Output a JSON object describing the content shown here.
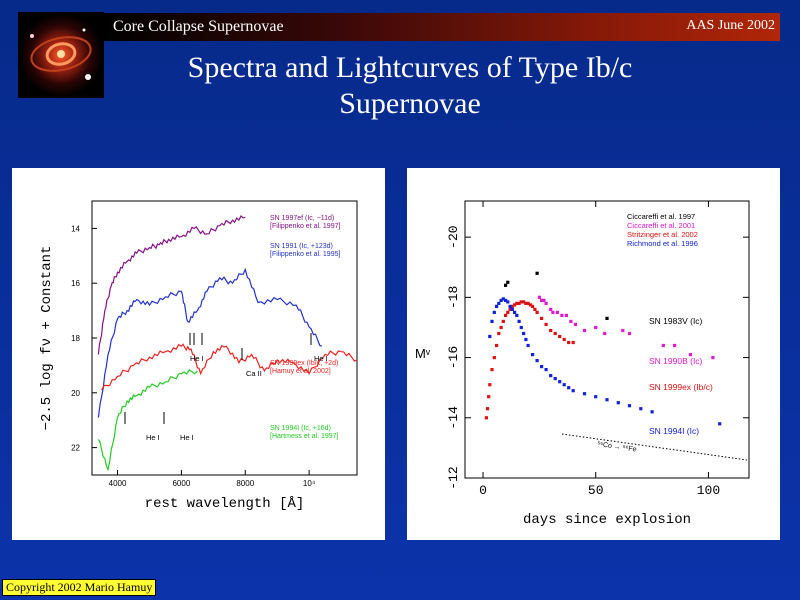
{
  "header": {
    "left_label": "Core Collapse Supernovae",
    "right_label": "AAS June 2002"
  },
  "title": {
    "line1": "Spectra and Lightcurves of Type Ib/c",
    "line2": "Supernovae"
  },
  "logo": {
    "icon": "supernova-ring-image"
  },
  "copyright": "Copyright 2002 Mario Hamuy",
  "chart_data": [
    {
      "type": "line",
      "xlabel": "rest wavelength [Å]",
      "ylabel": "−2.5 log fν + Constant",
      "xlim": [
        3200,
        11500
      ],
      "ylim": [
        23,
        13
      ],
      "x_tick_labels": [
        {
          "v": 4000,
          "label": "4000"
        },
        {
          "v": 6000,
          "label": "6000"
        },
        {
          "v": 8000,
          "label": "8000"
        },
        {
          "v": 10000,
          "label": "10⁴"
        }
      ],
      "y_tick_labels": [
        {
          "v": 14,
          "label": "14"
        },
        {
          "v": 16,
          "label": "16"
        },
        {
          "v": 18,
          "label": "18"
        },
        {
          "v": 20,
          "label": "20"
        },
        {
          "v": 22,
          "label": "22"
        }
      ],
      "series": [
        {
          "color": "#881188",
          "label1": "SN 1997ef (Ic, −11d)",
          "label2": "[Filippenko et al. 1997]",
          "x": [
            3400,
            3600,
            3800,
            4000,
            4300,
            4600,
            5000,
            5300,
            5600,
            6000,
            6400,
            6800,
            7200,
            7600,
            8000
          ],
          "y": [
            18.6,
            17.0,
            16.1,
            15.6,
            15.2,
            14.9,
            14.7,
            14.6,
            14.4,
            14.3,
            14.0,
            14.2,
            13.9,
            13.7,
            13.6
          ]
        },
        {
          "color": "#2233cc",
          "label1": "SN 1991 (Ic, +123d)",
          "label2": "[Filippenko et al. 1995]",
          "x": [
            3400,
            3700,
            4000,
            4300,
            4600,
            5000,
            5500,
            6000,
            6200,
            6500,
            6800,
            7200,
            7600,
            8000,
            8400,
            9000,
            9600,
            10000,
            10400
          ],
          "y": [
            20.9,
            18.6,
            17.3,
            17.0,
            16.6,
            16.8,
            16.5,
            16.3,
            17.4,
            17.0,
            16.3,
            15.8,
            16.0,
            15.5,
            16.7,
            16.6,
            16.8,
            17.6,
            18.3
          ]
        },
        {
          "color": "#ee2222",
          "label1": "SN 1999ex (Ib/c, +2d)",
          "label2": "[Hamuy et al. 2002]",
          "x": [
            3500,
            4000,
            4500,
            5000,
            5500,
            6000,
            6300,
            6600,
            7000,
            7400,
            7800,
            8200,
            8600,
            9000,
            9500,
            10000,
            10500,
            11000,
            11500
          ],
          "y": [
            19.9,
            19.4,
            19.0,
            18.7,
            18.5,
            18.3,
            18.4,
            19.3,
            18.5,
            18.3,
            18.9,
            18.6,
            19.2,
            18.8,
            18.9,
            19.3,
            18.6,
            18.5,
            18.8
          ]
        },
        {
          "color": "#22cc22",
          "label1": "SN 1994I (Ic, +16d)",
          "label2": "[Hartmess et al. 1997]",
          "x": [
            3400,
            3700,
            4000,
            4300,
            4600,
            5000,
            5500,
            6000,
            6500
          ],
          "y": [
            21.7,
            22.8,
            20.9,
            20.3,
            20.1,
            19.8,
            19.6,
            19.3,
            19.2
          ]
        }
      ],
      "annotations": [
        "He I",
        "He I",
        "Ca II",
        "He I",
        "He I"
      ]
    },
    {
      "type": "scatter",
      "xlabel": "days since explosion",
      "ylabel": "Mᵛ",
      "xlim": [
        -8,
        118
      ],
      "ylim": [
        -12,
        -21.2
      ],
      "x_ticks": [
        0,
        50,
        100
      ],
      "y_ticks": [
        -20,
        -18,
        -16,
        -14,
        -12
      ],
      "legend": [
        "Ciccareffi et al. 1997",
        "Ciccareffi et al. 2001",
        "Stritzinger et al. 2002",
        "Richmond et al. 1996"
      ],
      "legend_colors": [
        "#000000",
        "#e01ad0",
        "#dd1111",
        "#1122dd"
      ],
      "series": [
        {
          "name": "SN 1983V (Ic)",
          "color": "#000000",
          "x": [
            10,
            11,
            24,
            55
          ],
          "y": [
            -18.4,
            -18.5,
            -18.8,
            -17.3
          ]
        },
        {
          "name": "SN 1990B (Ic)",
          "color": "#e01ad0",
          "x": [
            25,
            26,
            27,
            28,
            30,
            31,
            33,
            35,
            37,
            39,
            41,
            45,
            50,
            54,
            62,
            65,
            80,
            85,
            92,
            102
          ],
          "y": [
            -18.0,
            -17.9,
            -17.9,
            -17.8,
            -17.6,
            -17.5,
            -17.5,
            -17.4,
            -17.4,
            -17.2,
            -17.1,
            -16.9,
            -17.0,
            -16.8,
            -16.9,
            -16.8,
            -16.4,
            -16.4,
            -16.1,
            -16.0
          ]
        },
        {
          "name": "SN 1999ex (Ib/c)",
          "color": "#dd1111",
          "x": [
            1.5,
            2,
            2.5,
            3,
            4,
            5,
            6,
            7,
            8,
            9,
            10,
            11,
            12,
            13,
            14,
            15,
            16,
            17,
            18,
            19,
            20,
            21,
            22,
            23,
            24,
            26,
            28,
            30,
            32,
            34,
            36,
            38,
            40
          ],
          "y": [
            -14.0,
            -14.3,
            -14.7,
            -15.1,
            -15.6,
            -16.0,
            -16.4,
            -16.8,
            -17.0,
            -17.2,
            -17.4,
            -17.5,
            -17.6,
            -17.7,
            -17.75,
            -17.8,
            -17.8,
            -17.85,
            -17.85,
            -17.8,
            -17.8,
            -17.75,
            -17.7,
            -17.6,
            -17.5,
            -17.3,
            -17.1,
            -16.9,
            -16.8,
            -16.7,
            -16.6,
            -16.5,
            -16.5
          ]
        },
        {
          "name": "SN 1994I (Ic)",
          "color": "#1122dd",
          "x": [
            3,
            4,
            5,
            6,
            7,
            8,
            9,
            10,
            11,
            12,
            13,
            14,
            15,
            16,
            17,
            18,
            19,
            20,
            22,
            24,
            26,
            28,
            30,
            32,
            34,
            36,
            38,
            40,
            45,
            50,
            55,
            60,
            65,
            70,
            75,
            105
          ],
          "y": [
            -16.7,
            -17.2,
            -17.5,
            -17.7,
            -17.8,
            -17.9,
            -17.95,
            -17.9,
            -17.85,
            -17.7,
            -17.6,
            -17.5,
            -17.4,
            -17.2,
            -17.0,
            -16.8,
            -16.6,
            -16.4,
            -16.1,
            -15.9,
            -15.7,
            -15.6,
            -15.4,
            -15.3,
            -15.2,
            -15.1,
            -15.0,
            -14.9,
            -14.8,
            -14.7,
            -14.6,
            -14.5,
            -14.4,
            -14.3,
            -14.2,
            -13.8
          ]
        }
      ],
      "decay_label": "⁵⁶Co → ⁵⁶Fe"
    }
  ]
}
